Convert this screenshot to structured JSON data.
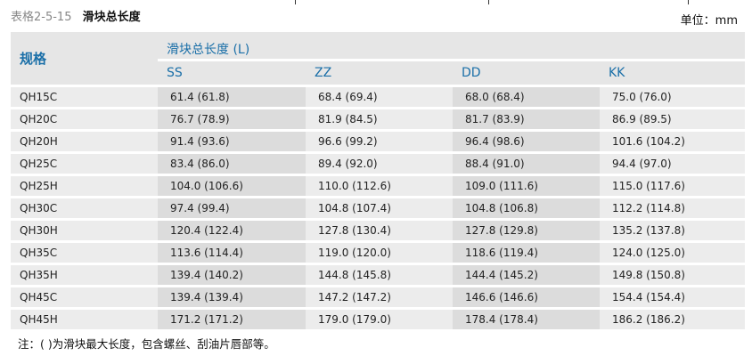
{
  "caption": {
    "number": "表格2-5-15",
    "title": "滑块总长度"
  },
  "unit": "单位：mm",
  "table": {
    "spec_header": "规格",
    "group_header": "滑块总长度 (L)",
    "columns": [
      "SS",
      "ZZ",
      "DD",
      "KK"
    ],
    "rows": [
      {
        "spec": "QH15C",
        "values": [
          "61.4 (61.8)",
          "68.4 (69.4)",
          "68.0 (68.4)",
          "75.0 (76.0)"
        ]
      },
      {
        "spec": "QH20C",
        "values": [
          "76.7 (78.9)",
          "81.9 (84.5)",
          "81.7 (83.9)",
          "86.9 (89.5)"
        ]
      },
      {
        "spec": "QH20H",
        "values": [
          "91.4 (93.6)",
          "96.6 (99.2)",
          "96.4 (98.6)",
          "101.6 (104.2)"
        ]
      },
      {
        "spec": "QH25C",
        "values": [
          "83.4 (86.0)",
          "89.4 (92.0)",
          "88.4 (91.0)",
          "94.4 (97.0)"
        ]
      },
      {
        "spec": "QH25H",
        "values": [
          "104.0 (106.6)",
          "110.0 (112.6)",
          "109.0 (111.6)",
          "115.0 (117.6)"
        ]
      },
      {
        "spec": "QH30C",
        "values": [
          "97.4 (99.4)",
          "104.8 (107.4)",
          "104.8 (106.8)",
          "112.2 (114.8)"
        ]
      },
      {
        "spec": "QH30H",
        "values": [
          "120.4 (122.4)",
          "127.8 (130.4)",
          "127.8 (129.8)",
          "135.2 (137.8)"
        ]
      },
      {
        "spec": "QH35C",
        "values": [
          "113.6 (114.4)",
          "119.0 (120.0)",
          "118.6 (119.4)",
          "124.0 (125.0)"
        ]
      },
      {
        "spec": "QH35H",
        "values": [
          "139.4 (140.2)",
          "144.8 (145.8)",
          "144.4 (145.2)",
          "149.8 (150.8)"
        ]
      },
      {
        "spec": "QH45C",
        "values": [
          "139.4 (139.4)",
          "147.2 (147.2)",
          "146.6 (146.6)",
          "154.4 (154.4)"
        ]
      },
      {
        "spec": "QH45H",
        "values": [
          "171.2 (171.2)",
          "179.0 (179.0)",
          "178.4 (178.4)",
          "186.2 (186.2)"
        ]
      }
    ]
  },
  "note": "注：( )为滑块最大长度，包含螺丝、刮油片唇部等。",
  "colors": {
    "header_text": "#1a6fa8",
    "header_bg": "#e6e6e6",
    "row_bg": "#ececec",
    "shaded_col_bg": "#dcdcdc"
  }
}
